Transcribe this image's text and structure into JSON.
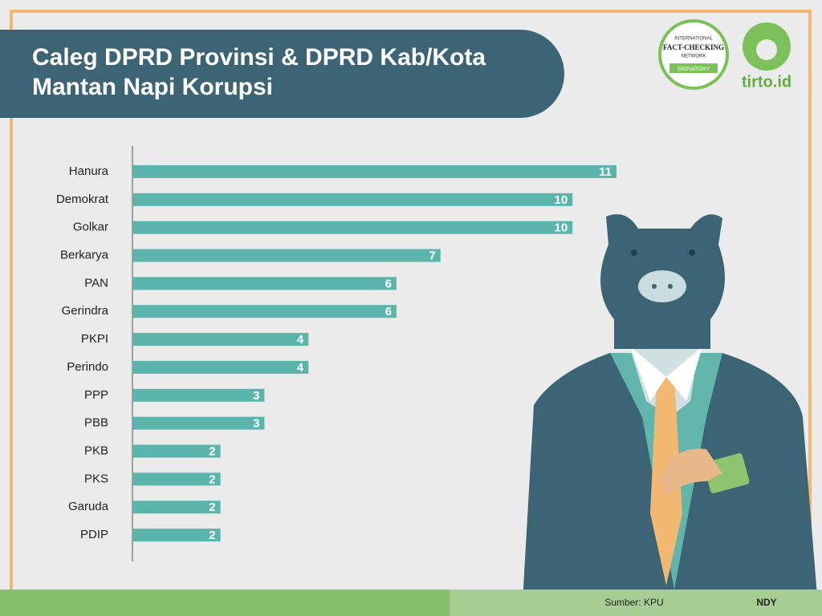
{
  "chart_data": {
    "type": "hbar",
    "title": [
      "Caleg DPRD Provinsi & DPRD Kab/Kota",
      "Mantan Napi Korupsi"
    ],
    "categories": [
      "Hanura",
      "Demokrat",
      "Golkar",
      "Berkarya",
      "PAN",
      "Gerindra",
      "PKPI",
      "Perindo",
      "PPP",
      "PBB",
      "PKB",
      "PKS",
      "Garuda",
      "PDIP"
    ],
    "values": [
      11,
      10,
      10,
      7,
      6,
      6,
      4,
      4,
      3,
      3,
      2,
      2,
      2,
      2
    ],
    "color": "#5bb5ac",
    "xlim": [
      0,
      11
    ],
    "source": "Sumber: KPU",
    "credit": "NDY",
    "badge": [
      "INTERNATIONAL",
      "FACT-CHECKING",
      "NETWORK",
      "SIGNATORY"
    ],
    "logo": "tirto.id"
  }
}
